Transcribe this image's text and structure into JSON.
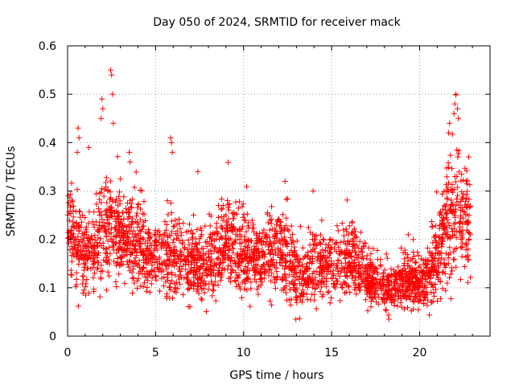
{
  "chart_data": {
    "type": "scatter",
    "title": "Day 050 of 2024, SRMTID for receiver mack",
    "xlabel": "GPS time / hours",
    "ylabel": "SRMTID / TECUs",
    "xlim": [
      0,
      24
    ],
    "ylim": [
      0,
      0.6
    ],
    "x_ticks": [
      0,
      5,
      10,
      15,
      20
    ],
    "x_tick_labels": [
      "0",
      "5",
      "10",
      "15",
      "20"
    ],
    "y_ticks": [
      0,
      0.1,
      0.2,
      0.3,
      0.4,
      0.5,
      0.6
    ],
    "y_tick_labels": [
      "0",
      "0.1",
      "0.2",
      "0.3",
      "0.4",
      "0.5",
      "0.6"
    ],
    "grid": true,
    "marker": "+",
    "series_color": "#ff0000",
    "points_per_hour": 48,
    "x_end": 22.9,
    "envelope": {
      "hours": [
        0,
        0.5,
        1,
        1.5,
        2,
        2.5,
        3,
        3.5,
        4,
        4.5,
        5,
        5.5,
        6,
        6.5,
        7,
        7.5,
        8,
        8.5,
        9,
        9.5,
        10,
        10.5,
        11,
        11.5,
        12,
        12.5,
        13,
        13.5,
        14,
        14.5,
        15,
        15.5,
        16,
        16.5,
        17,
        17.5,
        18,
        18.5,
        19,
        19.5,
        20,
        20.5,
        21,
        21.5,
        22,
        22.5,
        22.9
      ],
      "median": [
        0.22,
        0.2,
        0.17,
        0.18,
        0.21,
        0.22,
        0.21,
        0.2,
        0.19,
        0.17,
        0.17,
        0.16,
        0.17,
        0.16,
        0.15,
        0.14,
        0.15,
        0.17,
        0.2,
        0.19,
        0.17,
        0.16,
        0.15,
        0.17,
        0.18,
        0.16,
        0.12,
        0.12,
        0.14,
        0.15,
        0.14,
        0.15,
        0.16,
        0.15,
        0.12,
        0.11,
        0.1,
        0.1,
        0.11,
        0.12,
        0.11,
        0.12,
        0.16,
        0.22,
        0.26,
        0.25,
        0.21
      ],
      "spread": [
        0.05,
        0.06,
        0.04,
        0.05,
        0.06,
        0.06,
        0.05,
        0.05,
        0.05,
        0.04,
        0.04,
        0.05,
        0.05,
        0.05,
        0.04,
        0.04,
        0.04,
        0.05,
        0.05,
        0.05,
        0.05,
        0.04,
        0.04,
        0.05,
        0.05,
        0.05,
        0.04,
        0.03,
        0.04,
        0.04,
        0.04,
        0.04,
        0.04,
        0.04,
        0.03,
        0.03,
        0.03,
        0.03,
        0.03,
        0.03,
        0.03,
        0.04,
        0.05,
        0.07,
        0.08,
        0.07,
        0.05
      ]
    },
    "spikes": [
      {
        "x": 0.6,
        "y": 0.43
      },
      {
        "x": 0.65,
        "y": 0.41
      },
      {
        "x": 0.55,
        "y": 0.38
      },
      {
        "x": 1.2,
        "y": 0.39
      },
      {
        "x": 1.95,
        "y": 0.49
      },
      {
        "x": 2.0,
        "y": 0.47
      },
      {
        "x": 1.9,
        "y": 0.45
      },
      {
        "x": 2.45,
        "y": 0.55
      },
      {
        "x": 2.5,
        "y": 0.54
      },
      {
        "x": 2.55,
        "y": 0.5
      },
      {
        "x": 2.6,
        "y": 0.44
      },
      {
        "x": 3.5,
        "y": 0.38
      },
      {
        "x": 3.55,
        "y": 0.36
      },
      {
        "x": 5.85,
        "y": 0.41
      },
      {
        "x": 5.9,
        "y": 0.4
      },
      {
        "x": 5.95,
        "y": 0.38
      },
      {
        "x": 7.4,
        "y": 0.34
      },
      {
        "x": 12.35,
        "y": 0.32
      },
      {
        "x": 13.95,
        "y": 0.3
      },
      {
        "x": 21.65,
        "y": 0.42
      },
      {
        "x": 21.7,
        "y": 0.44
      },
      {
        "x": 21.95,
        "y": 0.46
      },
      {
        "x": 22.0,
        "y": 0.48
      },
      {
        "x": 22.05,
        "y": 0.5
      },
      {
        "x": 22.15,
        "y": 0.47
      },
      {
        "x": 22.2,
        "y": 0.45
      }
    ]
  }
}
